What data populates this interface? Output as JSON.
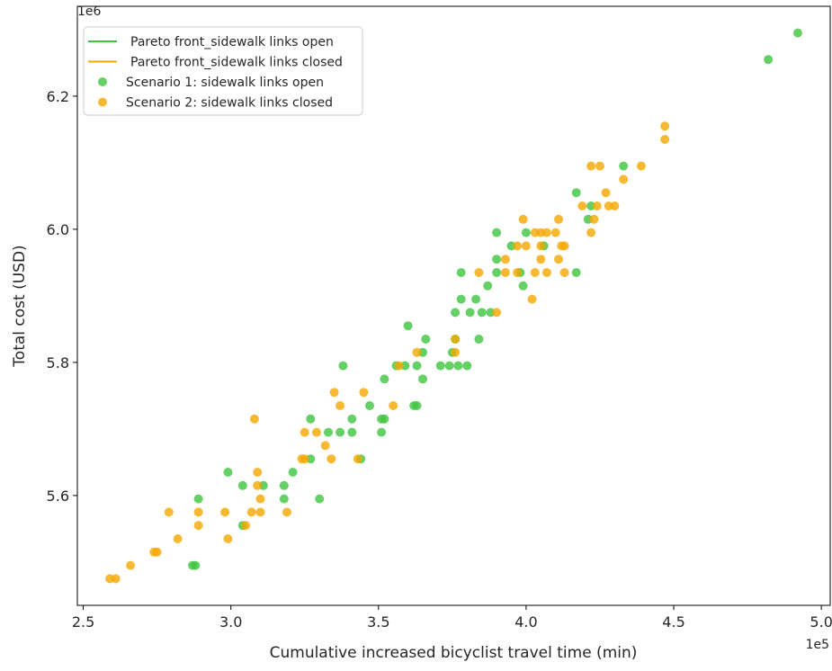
{
  "chart_data": {
    "type": "scatter",
    "title": "",
    "xlabel": "Cumulative increased bicyclist travel time (min)",
    "ylabel": "Total cost (USD)",
    "x_offset_label": "1e5",
    "y_offset_label": "1e6",
    "xlim": [
      2.48,
      5.03
    ],
    "ylim": [
      5.435,
      6.335
    ],
    "x_ticks": [
      2.5,
      3.0,
      3.5,
      4.0,
      4.5,
      5.0
    ],
    "x_tick_labels": [
      "2.5",
      "3.0",
      "3.5",
      "4.0",
      "4.5",
      "5.0"
    ],
    "y_ticks": [
      5.6,
      5.8,
      6.0,
      6.2
    ],
    "y_tick_labels": [
      "5.6",
      "5.8",
      "6.0",
      "6.2"
    ],
    "grid": false,
    "legend_position": "top-left",
    "legend": [
      {
        "label": "Pareto front_sidewalk links open",
        "kind": "line",
        "color": "#3ec43e"
      },
      {
        "label": "Pareto front_sidewalk links closed",
        "kind": "line",
        "color": "#f5a800"
      },
      {
        "label": "Scenario 1: sidewalk links open",
        "kind": "marker",
        "color": "#3ec43e"
      },
      {
        "label": "Scenario 2: sidewalk links closed",
        "kind": "marker",
        "color": "#f5a800"
      }
    ],
    "series": [
      {
        "name": "Scenario 1: sidewalk links open",
        "color": "#3ec43e",
        "points": [
          [
            4.92,
            6.295
          ],
          [
            4.82,
            6.255
          ],
          [
            4.33,
            6.095
          ],
          [
            4.17,
            6.055
          ],
          [
            4.22,
            6.035
          ],
          [
            4.21,
            6.015
          ],
          [
            4.0,
            5.995
          ],
          [
            3.9,
            5.995
          ],
          [
            4.06,
            5.975
          ],
          [
            3.95,
            5.975
          ],
          [
            3.9,
            5.955
          ],
          [
            3.9,
            5.935
          ],
          [
            3.78,
            5.935
          ],
          [
            3.98,
            5.935
          ],
          [
            4.17,
            5.935
          ],
          [
            3.87,
            5.915
          ],
          [
            3.99,
            5.915
          ],
          [
            3.83,
            5.895
          ],
          [
            3.78,
            5.895
          ],
          [
            3.81,
            5.875
          ],
          [
            3.76,
            5.875
          ],
          [
            3.85,
            5.875
          ],
          [
            3.88,
            5.875
          ],
          [
            3.6,
            5.855
          ],
          [
            3.66,
            5.835
          ],
          [
            3.76,
            5.835
          ],
          [
            3.84,
            5.835
          ],
          [
            3.65,
            5.815
          ],
          [
            3.75,
            5.815
          ],
          [
            3.38,
            5.795
          ],
          [
            3.56,
            5.795
          ],
          [
            3.59,
            5.795
          ],
          [
            3.63,
            5.795
          ],
          [
            3.71,
            5.795
          ],
          [
            3.74,
            5.795
          ],
          [
            3.77,
            5.795
          ],
          [
            3.8,
            5.795
          ],
          [
            3.52,
            5.775
          ],
          [
            3.65,
            5.775
          ],
          [
            3.47,
            5.735
          ],
          [
            3.62,
            5.735
          ],
          [
            3.63,
            5.735
          ],
          [
            3.27,
            5.715
          ],
          [
            3.41,
            5.715
          ],
          [
            3.51,
            5.715
          ],
          [
            3.52,
            5.715
          ],
          [
            3.33,
            5.695
          ],
          [
            3.37,
            5.695
          ],
          [
            3.41,
            5.695
          ],
          [
            3.51,
            5.695
          ],
          [
            3.27,
            5.655
          ],
          [
            3.44,
            5.655
          ],
          [
            2.99,
            5.635
          ],
          [
            3.21,
            5.635
          ],
          [
            3.04,
            5.615
          ],
          [
            3.11,
            5.615
          ],
          [
            3.18,
            5.615
          ],
          [
            2.89,
            5.595
          ],
          [
            3.18,
            5.595
          ],
          [
            3.3,
            5.595
          ],
          [
            3.04,
            5.555
          ],
          [
            2.87,
            5.495
          ],
          [
            2.88,
            5.495
          ]
        ]
      },
      {
        "name": "Scenario 2: sidewalk links closed",
        "color": "#f5a800",
        "points": [
          [
            4.47,
            6.155
          ],
          [
            4.47,
            6.135
          ],
          [
            4.22,
            6.095
          ],
          [
            4.25,
            6.095
          ],
          [
            4.39,
            6.095
          ],
          [
            4.33,
            6.075
          ],
          [
            4.27,
            6.055
          ],
          [
            4.19,
            6.035
          ],
          [
            4.24,
            6.035
          ],
          [
            4.28,
            6.035
          ],
          [
            4.3,
            6.035
          ],
          [
            4.11,
            6.015
          ],
          [
            4.23,
            6.015
          ],
          [
            3.99,
            6.015
          ],
          [
            4.22,
            5.995
          ],
          [
            4.03,
            5.995
          ],
          [
            4.05,
            5.995
          ],
          [
            4.07,
            5.995
          ],
          [
            4.1,
            5.995
          ],
          [
            4.0,
            5.975
          ],
          [
            4.05,
            5.975
          ],
          [
            4.12,
            5.975
          ],
          [
            4.13,
            5.975
          ],
          [
            3.97,
            5.975
          ],
          [
            3.93,
            5.955
          ],
          [
            4.05,
            5.955
          ],
          [
            4.11,
            5.955
          ],
          [
            3.84,
            5.935
          ],
          [
            3.93,
            5.935
          ],
          [
            3.97,
            5.935
          ],
          [
            4.03,
            5.935
          ],
          [
            4.07,
            5.935
          ],
          [
            4.13,
            5.935
          ],
          [
            4.02,
            5.895
          ],
          [
            3.9,
            5.875
          ],
          [
            3.76,
            5.835
          ],
          [
            3.63,
            5.815
          ],
          [
            3.76,
            5.815
          ],
          [
            3.57,
            5.795
          ],
          [
            3.35,
            5.755
          ],
          [
            3.45,
            5.755
          ],
          [
            3.37,
            5.735
          ],
          [
            3.55,
            5.735
          ],
          [
            3.08,
            5.715
          ],
          [
            3.25,
            5.695
          ],
          [
            3.29,
            5.695
          ],
          [
            3.32,
            5.675
          ],
          [
            3.24,
            5.655
          ],
          [
            3.25,
            5.655
          ],
          [
            3.34,
            5.655
          ],
          [
            3.43,
            5.655
          ],
          [
            3.09,
            5.635
          ],
          [
            3.09,
            5.615
          ],
          [
            3.1,
            5.595
          ],
          [
            3.1,
            5.575
          ],
          [
            3.07,
            5.575
          ],
          [
            3.19,
            5.575
          ],
          [
            2.98,
            5.575
          ],
          [
            2.79,
            5.575
          ],
          [
            2.89,
            5.575
          ],
          [
            2.89,
            5.555
          ],
          [
            3.05,
            5.555
          ],
          [
            2.82,
            5.535
          ],
          [
            2.99,
            5.535
          ],
          [
            2.74,
            5.515
          ],
          [
            2.75,
            5.515
          ],
          [
            2.66,
            5.495
          ],
          [
            2.59,
            5.475
          ],
          [
            2.61,
            5.475
          ]
        ]
      }
    ]
  }
}
